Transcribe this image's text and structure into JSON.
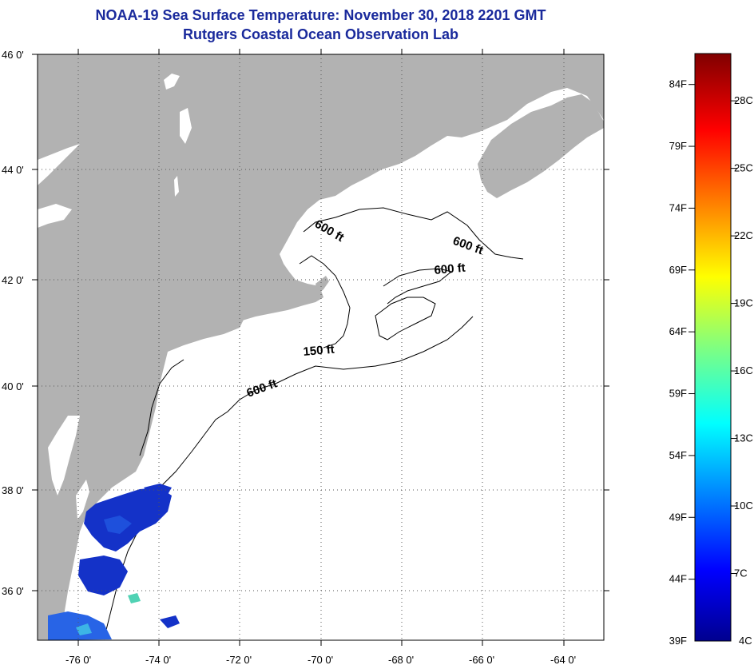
{
  "header": {
    "title": "NOAA-19 Sea Surface Temperature:  November 30, 2018 2201 GMT",
    "subtitle": "Rutgers Coastal Ocean Observation Lab"
  },
  "colors": {
    "land": "#b2b2b2",
    "ocean": "#ffffff",
    "title": "#1a2a9c",
    "sst_cold": "#1432c8"
  },
  "map": {
    "lon_labels": [
      "-76 0'",
      "-74 0'",
      "-72 0'",
      "-70 0'",
      "-68 0'",
      "-66 0'",
      "-64 0'"
    ],
    "lat_labels": [
      "36 0'",
      "38 0'",
      "40 0'",
      "42 0'",
      "44 0'",
      "46 0'"
    ],
    "lon_range": [
      -77.0,
      -63.0
    ],
    "lat_range": [
      35.0,
      46.0
    ],
    "contour_labels": [
      "600 ft",
      "600 ft",
      "600 ft",
      "150 ft",
      "600 ft"
    ]
  },
  "colorbar": {
    "fahrenheit": [
      "39F",
      "44F",
      "49F",
      "54F",
      "59F",
      "64F",
      "69F",
      "74F",
      "79F",
      "84F"
    ],
    "celsius": [
      "4C",
      "7C",
      "10C",
      "13C",
      "16C",
      "19C",
      "22C",
      "25C",
      "28C"
    ]
  }
}
